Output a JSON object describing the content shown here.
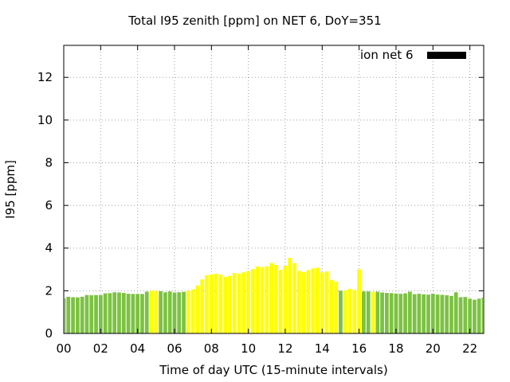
{
  "chart_data": {
    "type": "bar",
    "title": "Total I95 zenith [ppm] on NET 6, DoY=351",
    "xlabel": "Time of day UTC (15-minute intervals)",
    "ylabel": "I95 [ppm]",
    "xlim": [
      0,
      22.75
    ],
    "ylim": [
      0,
      13.5
    ],
    "x_ticks": [
      "00",
      "02",
      "04",
      "06",
      "08",
      "10",
      "12",
      "14",
      "16",
      "18",
      "20",
      "22"
    ],
    "y_ticks": [
      "0",
      "2",
      "4",
      "6",
      "8",
      "10",
      "12"
    ],
    "grid": true,
    "legend": {
      "label": "ion net 6",
      "position": "top-right",
      "color": "#000000"
    },
    "colors": {
      "green": "#7cc242",
      "yellow": "#ffff00"
    },
    "interval_hours": 0.25,
    "values": [
      1.65,
      1.72,
      1.7,
      1.69,
      1.72,
      1.8,
      1.79,
      1.8,
      1.8,
      1.88,
      1.89,
      1.93,
      1.92,
      1.9,
      1.86,
      1.85,
      1.85,
      1.85,
      1.96,
      2.0,
      2.0,
      1.98,
      1.93,
      1.97,
      1.92,
      1.93,
      1.95,
      2.0,
      2.07,
      2.25,
      2.53,
      2.73,
      2.77,
      2.8,
      2.76,
      2.65,
      2.7,
      2.83,
      2.8,
      2.87,
      2.93,
      3.02,
      3.14,
      3.11,
      3.15,
      3.3,
      3.21,
      2.98,
      3.17,
      3.54,
      3.3,
      2.93,
      2.87,
      2.97,
      3.05,
      3.08,
      2.86,
      2.91,
      2.51,
      2.43,
      2.0,
      2.02,
      2.09,
      2.04,
      3.0,
      1.97,
      1.97,
      1.95,
      1.96,
      1.92,
      1.9,
      1.89,
      1.87,
      1.86,
      1.88,
      1.96,
      1.84,
      1.86,
      1.83,
      1.82,
      1.86,
      1.82,
      1.81,
      1.79,
      1.76,
      1.93,
      1.7,
      1.71,
      1.63,
      1.58,
      1.63,
      1.68
    ],
    "bar_colors": [
      "green",
      "green",
      "green",
      "green",
      "green",
      "green",
      "green",
      "green",
      "green",
      "green",
      "green",
      "green",
      "green",
      "green",
      "green",
      "green",
      "green",
      "green",
      "green",
      "yellow",
      "yellow",
      "green",
      "green",
      "green",
      "green",
      "green",
      "green",
      "yellow",
      "yellow",
      "yellow",
      "yellow",
      "yellow",
      "yellow",
      "yellow",
      "yellow",
      "yellow",
      "yellow",
      "yellow",
      "yellow",
      "yellow",
      "yellow",
      "yellow",
      "yellow",
      "yellow",
      "yellow",
      "yellow",
      "yellow",
      "yellow",
      "yellow",
      "yellow",
      "yellow",
      "yellow",
      "yellow",
      "yellow",
      "yellow",
      "yellow",
      "yellow",
      "yellow",
      "yellow",
      "yellow",
      "green",
      "yellow",
      "yellow",
      "yellow",
      "yellow",
      "green",
      "green",
      "yellow",
      "green",
      "green",
      "green",
      "green",
      "green",
      "green",
      "green",
      "green",
      "green",
      "green",
      "green",
      "green",
      "green",
      "green",
      "green",
      "green",
      "green",
      "green",
      "green",
      "green",
      "green",
      "green",
      "green",
      "green"
    ]
  }
}
